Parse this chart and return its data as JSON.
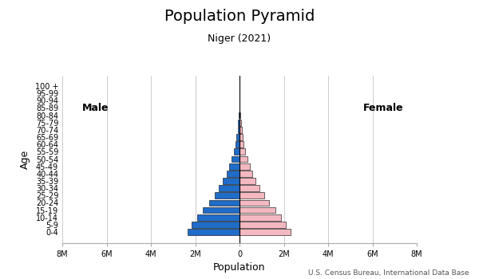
{
  "title": "Population Pyramid",
  "subtitle": "Niger (2021)",
  "xlabel": "Population",
  "ylabel": "Age",
  "source": "U.S. Census Bureau, International Data Base",
  "age_groups": [
    "0-4",
    "5-9",
    "10-14",
    "15-19",
    "20-24",
    "25-29",
    "30-34",
    "35-39",
    "40-44",
    "45-49",
    "50-54",
    "55-59",
    "60-64",
    "65-69",
    "70-74",
    "75-79",
    "80-84",
    "85-89",
    "90-94",
    "95-99",
    "100 +"
  ],
  "male": [
    2350000,
    2150000,
    1900000,
    1650000,
    1380000,
    1130000,
    920000,
    740000,
    590000,
    460000,
    350000,
    265000,
    190000,
    135000,
    90000,
    55000,
    28000,
    12000,
    4000,
    1200,
    200
  ],
  "female": [
    2300000,
    2100000,
    1860000,
    1610000,
    1350000,
    1110000,
    900000,
    730000,
    585000,
    460000,
    355000,
    270000,
    195000,
    140000,
    95000,
    60000,
    32000,
    14000,
    5000,
    1500,
    300
  ],
  "male_color": "#1f6cc9",
  "female_color": "#f4b8c1",
  "bar_edge_color": "#000000",
  "xlim": 8000000,
  "xtick_values": [
    -8000000,
    -6000000,
    -4000000,
    -2000000,
    0,
    2000000,
    4000000,
    6000000,
    8000000
  ],
  "xtick_labels": [
    "8M",
    "6M",
    "4M",
    "2M",
    "0",
    "2M",
    "4M",
    "6M",
    "8M"
  ],
  "grid_color": "#cccccc",
  "background_color": "#ffffff",
  "male_label": "Male",
  "female_label": "Female",
  "title_fontsize": 14,
  "subtitle_fontsize": 9,
  "axis_label_fontsize": 9,
  "tick_fontsize": 7,
  "source_fontsize": 6.5,
  "male_label_fontsize": 9,
  "female_label_fontsize": 9
}
